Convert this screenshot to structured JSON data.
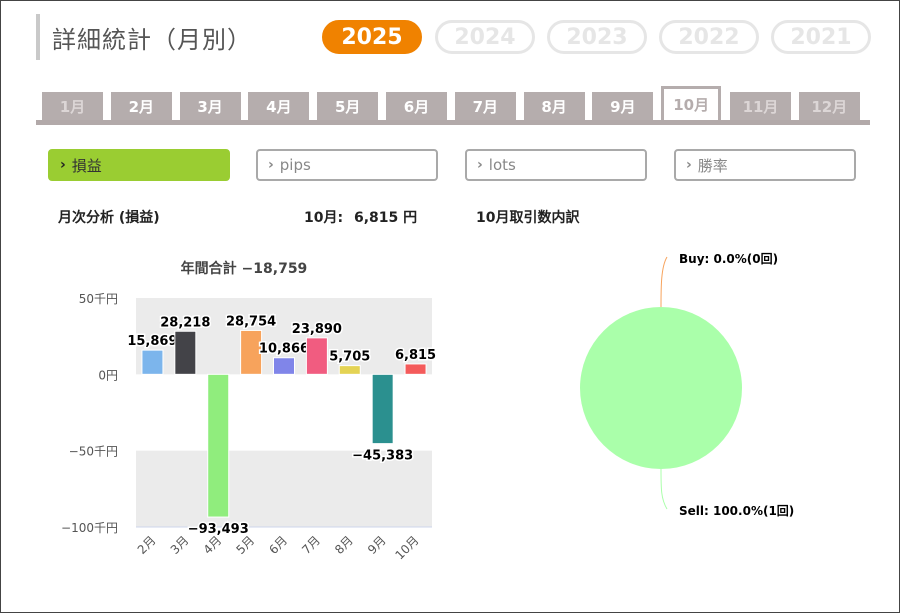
{
  "header": {
    "title": "詳細統計（月別）"
  },
  "years": [
    {
      "label": "2025",
      "active": true
    },
    {
      "label": "2024",
      "active": false
    },
    {
      "label": "2023",
      "active": false
    },
    {
      "label": "2022",
      "active": false
    },
    {
      "label": "2021",
      "active": false
    }
  ],
  "months": [
    {
      "label": "1月",
      "state": "dim"
    },
    {
      "label": "2月",
      "state": "normal"
    },
    {
      "label": "3月",
      "state": "normal"
    },
    {
      "label": "4月",
      "state": "normal"
    },
    {
      "label": "5月",
      "state": "normal"
    },
    {
      "label": "6月",
      "state": "normal"
    },
    {
      "label": "7月",
      "state": "normal"
    },
    {
      "label": "8月",
      "state": "normal"
    },
    {
      "label": "9月",
      "state": "normal"
    },
    {
      "label": "10月",
      "state": "active"
    },
    {
      "label": "11月",
      "state": "dim"
    },
    {
      "label": "12月",
      "state": "dim"
    }
  ],
  "subtabs": [
    {
      "label": "損益",
      "active": true
    },
    {
      "label": "pips",
      "active": false
    },
    {
      "label": "lots",
      "active": false
    },
    {
      "label": "勝率",
      "active": false
    }
  ],
  "summary": {
    "monthly_title": "月次分析 (損益)",
    "current_label": "10月:",
    "current_value": "6,815 円",
    "breakdown_title": "10月取引数内訳"
  },
  "colors": {
    "accent": "#f08200",
    "tab_active": "#9acd32",
    "tab_grey": "#b5adad"
  },
  "chart_data": [
    {
      "type": "bar",
      "title": "年間合計 −18,759",
      "categories": [
        "2月",
        "3月",
        "4月",
        "5月",
        "6月",
        "7月",
        "8月",
        "9月",
        "10月"
      ],
      "values": [
        15869,
        28218,
        -93493,
        28754,
        10866,
        23890,
        5705,
        -45383,
        6815
      ],
      "value_labels": [
        "15,869",
        "28,218",
        "−93,493",
        "28,754",
        "10,866",
        "23,890",
        "5,705",
        "−45,383",
        "6,815"
      ],
      "colors": [
        "#7cb5ec",
        "#434348",
        "#90ed7d",
        "#f7a35c",
        "#8085e9",
        "#f15c80",
        "#e4d354",
        "#2b908f",
        "#f45b5b"
      ],
      "ylim": [
        -100000,
        50000
      ],
      "yticks": [
        {
          "value": 50000,
          "label": "50千円"
        },
        {
          "value": 0,
          "label": "0円"
        },
        {
          "value": -50000,
          "label": "−50千円"
        },
        {
          "value": -100000,
          "label": "−100千円"
        }
      ],
      "grid": false
    },
    {
      "type": "pie",
      "slices": [
        {
          "name": "Buy",
          "value": 0,
          "label": "Buy: 0.0%(0回)",
          "color": "#f7a35c"
        },
        {
          "name": "Sell",
          "value": 100,
          "label": "Sell: 100.0%(1回)",
          "color": "#aaffaa"
        }
      ]
    }
  ]
}
